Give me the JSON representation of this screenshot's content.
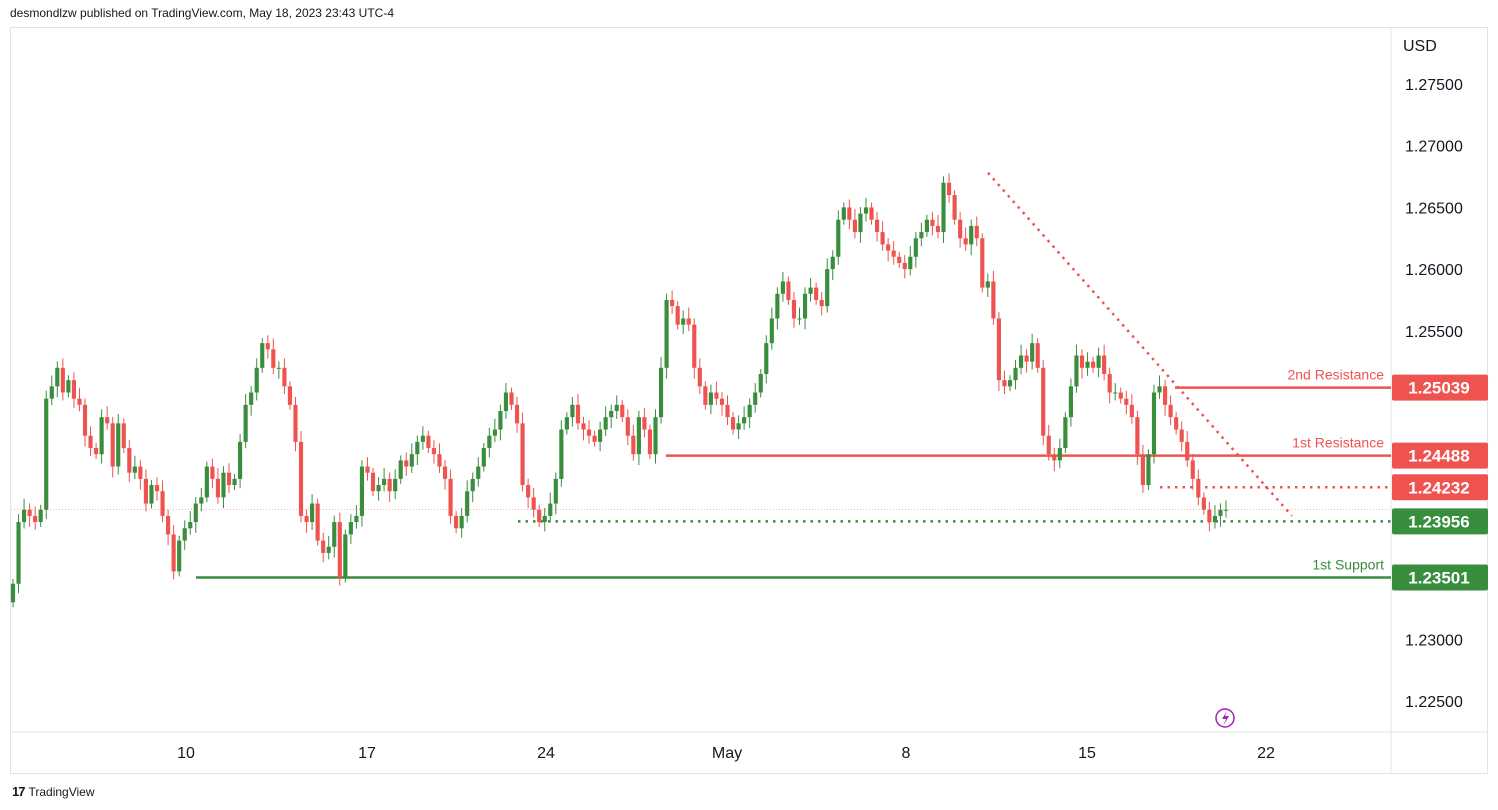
{
  "header": {
    "publisher_line": "desmondlzw published on TradingView.com, May 18, 2023 23:43 UTC-4"
  },
  "footer": {
    "brand": "TradingView"
  },
  "chart_data": {
    "type": "candlestick",
    "currency": "USD",
    "y_ticks": [
      "1.27500",
      "1.27000",
      "1.26500",
      "1.26000",
      "1.25500",
      "1.23000",
      "1.22500"
    ],
    "x_ticks": [
      "10",
      "17",
      "24",
      "May",
      "8",
      "15",
      "22"
    ],
    "ylim": [
      1.2205,
      1.2785
    ],
    "colors": {
      "up": "#388e3c",
      "down": "#ef5350",
      "resistance": "#ef5350",
      "support": "#388e3c"
    },
    "levels": [
      {
        "price": 1.25039,
        "label_text": "1.25039",
        "name": "2nd Resistance",
        "kind": "resistance",
        "style": "solid"
      },
      {
        "price": 1.24488,
        "label_text": "1.24488",
        "name": "1st Resistance",
        "kind": "resistance",
        "style": "solid"
      },
      {
        "price": 1.24232,
        "label_text": "1.24232",
        "name": "",
        "kind": "resistance",
        "style": "dotted"
      },
      {
        "price": 1.23956,
        "label_text": "1.23956",
        "name": "",
        "kind": "support",
        "style": "dotted"
      },
      {
        "price": 1.23501,
        "label_text": "1.23501",
        "name": "1st Support",
        "kind": "support",
        "style": "solid"
      }
    ],
    "candle_closes": [
      1.2345,
      1.2395,
      1.2405,
      1.24,
      1.2395,
      1.2405,
      1.2495,
      1.2505,
      1.252,
      1.25,
      1.251,
      1.2495,
      1.249,
      1.2465,
      1.2455,
      1.245,
      1.248,
      1.2475,
      1.244,
      1.2475,
      1.2455,
      1.2435,
      1.244,
      1.243,
      1.241,
      1.2425,
      1.242,
      1.24,
      1.2385,
      1.2355,
      1.238,
      1.239,
      1.2395,
      1.241,
      1.2415,
      1.244,
      1.243,
      1.2415,
      1.2435,
      1.2425,
      1.243,
      1.246,
      1.249,
      1.25,
      1.252,
      1.254,
      1.2535,
      1.252,
      1.252,
      1.2505,
      1.249,
      1.246,
      1.24,
      1.2395,
      1.241,
      1.238,
      1.237,
      1.2375,
      1.2395,
      1.235,
      1.2385,
      1.2395,
      1.24,
      1.244,
      1.2435,
      1.242,
      1.2425,
      1.243,
      1.242,
      1.243,
      1.2445,
      1.244,
      1.245,
      1.246,
      1.2465,
      1.2455,
      1.245,
      1.244,
      1.243,
      1.24,
      1.239,
      1.24,
      1.242,
      1.243,
      1.244,
      1.2455,
      1.2465,
      1.247,
      1.2485,
      1.25,
      1.249,
      1.2475,
      1.2425,
      1.2415,
      1.2405,
      1.2395,
      1.24,
      1.241,
      1.243,
      1.247,
      1.248,
      1.249,
      1.2475,
      1.247,
      1.2465,
      1.246,
      1.247,
      1.248,
      1.2485,
      1.249,
      1.248,
      1.2465,
      1.245,
      1.248,
      1.247,
      1.245,
      1.248,
      1.252,
      1.2575,
      1.257,
      1.2555,
      1.256,
      1.2555,
      1.252,
      1.2505,
      1.249,
      1.25,
      1.2495,
      1.249,
      1.248,
      1.247,
      1.2475,
      1.248,
      1.249,
      1.25,
      1.2515,
      1.254,
      1.256,
      1.258,
      1.259,
      1.2575,
      1.256,
      1.256,
      1.258,
      1.2585,
      1.2575,
      1.257,
      1.26,
      1.261,
      1.264,
      1.265,
      1.264,
      1.263,
      1.2645,
      1.265,
      1.264,
      1.263,
      1.262,
      1.2615,
      1.261,
      1.2605,
      1.26,
      1.261,
      1.2625,
      1.263,
      1.264,
      1.2635,
      1.263,
      1.267,
      1.266,
      1.264,
      1.2625,
      1.262,
      1.2635,
      1.2625,
      1.2585,
      1.259,
      1.256,
      1.251,
      1.2505,
      1.251,
      1.252,
      1.253,
      1.2525,
      1.254,
      1.252,
      1.2465,
      1.245,
      1.2445,
      1.2455,
      1.248,
      1.2505,
      1.253,
      1.252,
      1.2525,
      1.252,
      1.253,
      1.2515,
      1.25,
      1.25,
      1.2495,
      1.249,
      1.248,
      1.245,
      1.2425,
      1.245,
      1.25,
      1.2505,
      1.249,
      1.248,
      1.247,
      1.246,
      1.2445,
      1.243,
      1.2415,
      1.2405,
      1.2395,
      1.24,
      1.2405,
      1.2405
    ],
    "trendline": {
      "from_price": 1.2678,
      "to_price": 1.24
    }
  }
}
